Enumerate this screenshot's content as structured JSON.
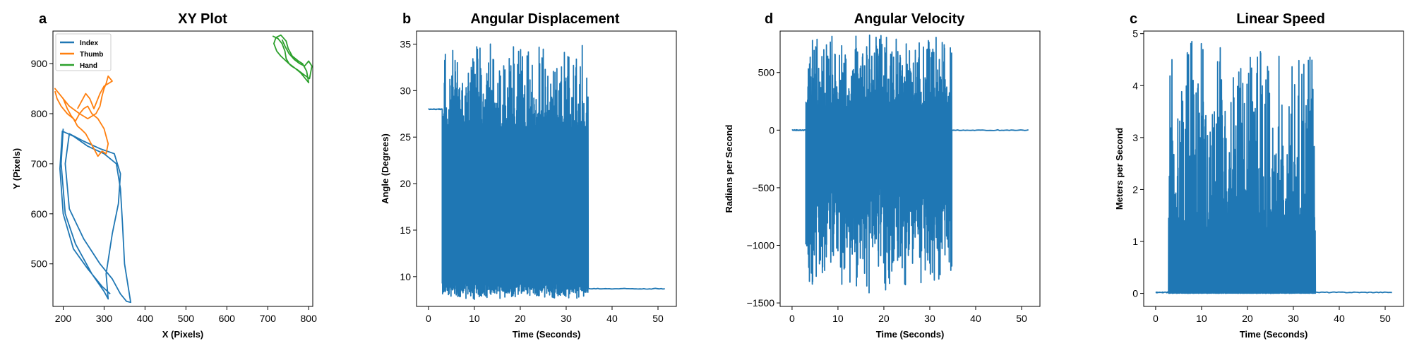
{
  "colors": {
    "index": "#1f77b4",
    "thumb": "#ff7f0e",
    "hand": "#2ca02c",
    "line": "#1f77b4"
  },
  "chart_data": [
    {
      "type": "line",
      "panel_letter": "a",
      "title": "XY Plot",
      "xlabel": "X (Pixels)",
      "ylabel": "Y (Pixels)",
      "xlim": [
        175,
        810
      ],
      "ylim": [
        415,
        965
      ],
      "xticks": [
        "200",
        "300",
        "400",
        "500",
        "600",
        "700",
        "800"
      ],
      "yticks": [
        "500",
        "600",
        "700",
        "800",
        "900"
      ],
      "legend": {
        "position": "top-left",
        "entries": [
          "Index",
          "Thumb",
          "Hand"
        ]
      },
      "series": [
        {
          "name": "Index",
          "color": "#1f77b4",
          "points": [
            [
              200,
              770
            ],
            [
              195,
              700
            ],
            [
              205,
              600
            ],
            [
              230,
              540
            ],
            [
              270,
              480
            ],
            [
              300,
              445
            ],
            [
              310,
              430
            ],
            [
              305,
              480
            ],
            [
              320,
              560
            ],
            [
              335,
              620
            ],
            [
              340,
              680
            ],
            [
              325,
              720
            ],
            [
              290,
              730
            ],
            [
              250,
              745
            ],
            [
              215,
              760
            ],
            [
              205,
              700
            ],
            [
              215,
              610
            ],
            [
              250,
              550
            ],
            [
              290,
              500
            ],
            [
              320,
              470
            ],
            [
              340,
              440
            ],
            [
              355,
              425
            ],
            [
              365,
              423
            ],
            [
              350,
              500
            ],
            [
              345,
              580
            ],
            [
              340,
              650
            ],
            [
              330,
              700
            ],
            [
              300,
              720
            ],
            [
              260,
              735
            ],
            [
              225,
              755
            ],
            [
              198,
              765
            ],
            [
              192,
              690
            ],
            [
              200,
              600
            ],
            [
              225,
              530
            ],
            [
              260,
              490
            ],
            [
              295,
              455
            ],
            [
              315,
              440
            ]
          ]
        },
        {
          "name": "Thumb",
          "color": "#ff7f0e",
          "points": [
            [
              180,
              845
            ],
            [
              185,
              830
            ],
            [
              195,
              815
            ],
            [
              210,
              800
            ],
            [
              225,
              790
            ],
            [
              235,
              775
            ],
            [
              245,
              768
            ],
            [
              255,
              760
            ],
            [
              265,
              745
            ],
            [
              275,
              730
            ],
            [
              285,
              715
            ],
            [
              295,
              725
            ],
            [
              305,
              720
            ],
            [
              310,
              740
            ],
            [
              300,
              770
            ],
            [
              285,
              790
            ],
            [
              270,
              800
            ],
            [
              260,
              815
            ],
            [
              250,
              810
            ],
            [
              240,
              800
            ],
            [
              230,
              785
            ],
            [
              220,
              795
            ],
            [
              210,
              810
            ],
            [
              200,
              830
            ],
            [
              190,
              840
            ],
            [
              180,
              850
            ],
            [
              195,
              835
            ],
            [
              215,
              815
            ],
            [
              240,
              800
            ],
            [
              260,
              790
            ],
            [
              280,
              800
            ],
            [
              290,
              815
            ],
            [
              295,
              835
            ],
            [
              300,
              850
            ],
            [
              305,
              860
            ],
            [
              310,
              875
            ],
            [
              315,
              870
            ],
            [
              320,
              865
            ],
            [
              310,
              860
            ],
            [
              300,
              855
            ],
            [
              290,
              840
            ],
            [
              280,
              820
            ],
            [
              275,
              810
            ],
            [
              265,
              830
            ],
            [
              255,
              840
            ],
            [
              245,
              825
            ],
            [
              235,
              810
            ]
          ]
        },
        {
          "name": "Hand",
          "color": "#2ca02c",
          "points": [
            [
              712,
              955
            ],
            [
              725,
              950
            ],
            [
              735,
              940
            ],
            [
              742,
              925
            ],
            [
              745,
              910
            ],
            [
              752,
              900
            ],
            [
              765,
              892
            ],
            [
              780,
              882
            ],
            [
              790,
              872
            ],
            [
              800,
              862
            ],
            [
              795,
              885
            ],
            [
              785,
              900
            ],
            [
              775,
              905
            ],
            [
              760,
              915
            ],
            [
              750,
              930
            ],
            [
              745,
              945
            ],
            [
              732,
              957
            ],
            [
              720,
              952
            ],
            [
              715,
              940
            ],
            [
              722,
              925
            ],
            [
              732,
              915
            ],
            [
              745,
              905
            ],
            [
              758,
              895
            ],
            [
              772,
              888
            ],
            [
              788,
              878
            ],
            [
              802,
              870
            ],
            [
              808,
              895
            ],
            [
              800,
              905
            ],
            [
              790,
              895
            ],
            [
              778,
              900
            ],
            [
              765,
              908
            ],
            [
              752,
              920
            ],
            [
              742,
              935
            ],
            [
              735,
              948
            ]
          ]
        }
      ]
    },
    {
      "type": "line",
      "panel_letter": "b",
      "title": "Angular Displacement",
      "xlabel": "Time (Seconds)",
      "ylabel": "Angle (Degrees)",
      "xlim": [
        -2.6,
        54
      ],
      "ylim": [
        6.8,
        36.4
      ],
      "xticks": [
        "0",
        "10",
        "20",
        "30",
        "40",
        "50"
      ],
      "yticks": [
        "10",
        "15",
        "20",
        "25",
        "30",
        "35"
      ],
      "series": [
        {
          "color": "#1f77b4",
          "segments": [
            {
              "type": "flat",
              "t": [
                0,
                3.0
              ],
              "v": 28.0
            },
            {
              "type": "oscillation",
              "t": [
                3.0,
                34.8
              ],
              "min": [
                7.5,
                9.5
              ],
              "max": [
                26,
                35.2
              ]
            },
            {
              "type": "flat",
              "t": [
                34.8,
                51.5
              ],
              "v": 8.7
            }
          ]
        }
      ]
    },
    {
      "type": "line",
      "panel_letter": "d",
      "title": "Angular Velocity",
      "xlabel": "Time (Seconds)",
      "ylabel": "Radians per Second",
      "xlim": [
        -2.6,
        54
      ],
      "ylim": [
        -1530,
        860
      ],
      "xticks": [
        "0",
        "10",
        "20",
        "30",
        "40",
        "50"
      ],
      "yticks": [
        "−1500",
        "−1000",
        "−500",
        "0",
        "500"
      ],
      "series": [
        {
          "color": "#1f77b4",
          "segments": [
            {
              "type": "flat",
              "t": [
                0,
                3.0
              ],
              "v": 0
            },
            {
              "type": "oscillation",
              "t": [
                3.0,
                34.8
              ],
              "min": [
                -1420,
                -400
              ],
              "max": [
                200,
                830
              ]
            },
            {
              "type": "flat",
              "t": [
                34.8,
                51.5
              ],
              "v": 0
            }
          ]
        }
      ]
    },
    {
      "type": "line",
      "panel_letter": "c",
      "title": "Linear Speed",
      "xlabel": "Time (Seconds)",
      "ylabel": "Meters per Second",
      "xlim": [
        -2.6,
        54
      ],
      "ylim": [
        -0.25,
        5.05
      ],
      "xticks": [
        "0",
        "10",
        "20",
        "30",
        "40",
        "50"
      ],
      "yticks": [
        "0",
        "1",
        "2",
        "3",
        "4",
        "5"
      ],
      "series": [
        {
          "color": "#1f77b4",
          "segments": [
            {
              "type": "flat",
              "t": [
                0,
                2.8
              ],
              "v": 0.02
            },
            {
              "type": "oscillation",
              "t": [
                2.8,
                34.8
              ],
              "min": [
                0,
                0.01
              ],
              "max": [
                1.2,
                4.85
              ]
            },
            {
              "type": "flat",
              "t": [
                34.8,
                51.5
              ],
              "v": 0.02
            }
          ]
        }
      ]
    }
  ]
}
